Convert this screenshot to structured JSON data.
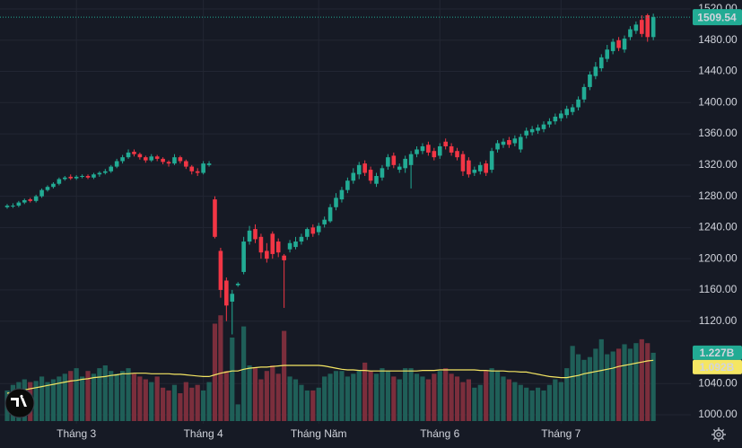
{
  "chart_data": {
    "type": "candlestick",
    "up_color": "#22ab94",
    "down_color": "#f23645",
    "volume_up_color": "#1f5f58",
    "volume_down_color": "#7b2e3c",
    "ma_color": "#f5e663",
    "grid": true,
    "ylim": [
      1000,
      1520
    ],
    "yticks": [
      {
        "value": 1000,
        "label": "1000.00"
      },
      {
        "value": 1040,
        "label": "1040.00"
      },
      {
        "value": 1120,
        "label": "1120.00"
      },
      {
        "value": 1160,
        "label": "1160.00"
      },
      {
        "value": 1200,
        "label": "1200.00"
      },
      {
        "value": 1240,
        "label": "1240.00"
      },
      {
        "value": 1280,
        "label": "1280.00"
      },
      {
        "value": 1320,
        "label": "1320.00"
      },
      {
        "value": 1360,
        "label": "1360.00"
      },
      {
        "value": 1400,
        "label": "1400.00"
      },
      {
        "value": 1440,
        "label": "1440.00"
      },
      {
        "value": 1480,
        "label": "1480.00"
      },
      {
        "value": 1520,
        "label": "1520.00"
      }
    ],
    "xticks": [
      {
        "value": 12,
        "label": "Tháng 3"
      },
      {
        "value": 34,
        "label": "Tháng 4"
      },
      {
        "value": 54,
        "label": "Tháng Năm"
      },
      {
        "value": 75,
        "label": "Tháng 6"
      },
      {
        "value": 96,
        "label": "Tháng 7"
      }
    ],
    "volume_ylim": [
      0,
      7.5
    ],
    "last_volume_label": "1.227B",
    "last_ma_label": "1.092B",
    "ohlc": [
      [
        1266,
        1270,
        1264,
        1268
      ],
      [
        1268,
        1271,
        1265,
        1268
      ],
      [
        1268,
        1274,
        1266,
        1272
      ],
      [
        1272,
        1277,
        1270,
        1275
      ],
      [
        1276,
        1278,
        1272,
        1274
      ],
      [
        1274,
        1282,
        1272,
        1280
      ],
      [
        1280,
        1290,
        1278,
        1288
      ],
      [
        1288,
        1294,
        1286,
        1292
      ],
      [
        1292,
        1298,
        1290,
        1296
      ],
      [
        1296,
        1304,
        1294,
        1302
      ],
      [
        1302,
        1306,
        1300,
        1304
      ],
      [
        1305,
        1308,
        1301,
        1303
      ],
      [
        1303,
        1307,
        1301,
        1305
      ],
      [
        1305,
        1308,
        1303,
        1306
      ],
      [
        1306,
        1308,
        1302,
        1304
      ],
      [
        1304,
        1310,
        1302,
        1308
      ],
      [
        1308,
        1312,
        1305,
        1310
      ],
      [
        1310,
        1315,
        1308,
        1312
      ],
      [
        1312,
        1320,
        1310,
        1318
      ],
      [
        1318,
        1328,
        1316,
        1325
      ],
      [
        1325,
        1333,
        1322,
        1330
      ],
      [
        1330,
        1340,
        1328,
        1336
      ],
      [
        1337,
        1340,
        1331,
        1334
      ],
      [
        1334,
        1336,
        1327,
        1330
      ],
      [
        1330,
        1332,
        1323,
        1326
      ],
      [
        1326,
        1334,
        1324,
        1331
      ],
      [
        1331,
        1333,
        1325,
        1328
      ],
      [
        1328,
        1330,
        1321,
        1324
      ],
      [
        1324,
        1326,
        1318,
        1322
      ],
      [
        1322,
        1334,
        1320,
        1330
      ],
      [
        1330,
        1332,
        1322,
        1325
      ],
      [
        1325,
        1327,
        1315,
        1318
      ],
      [
        1318,
        1320,
        1308,
        1312
      ],
      [
        1312,
        1316,
        1306,
        1310
      ],
      [
        1310,
        1325,
        1308,
        1322
      ],
      [
        1320,
        1325,
        1318,
        1322
      ],
      [
        1276,
        1280,
        1226,
        1228
      ],
      [
        1210,
        1214,
        1150,
        1160
      ],
      [
        1172,
        1176,
        1120,
        1140
      ],
      [
        1145,
        1160,
        1103,
        1155
      ],
      [
        1166,
        1170,
        1164,
        1168
      ],
      [
        1183,
        1228,
        1180,
        1222
      ],
      [
        1222,
        1242,
        1218,
        1236
      ],
      [
        1238,
        1244,
        1220,
        1225
      ],
      [
        1228,
        1232,
        1200,
        1208
      ],
      [
        1210,
        1220,
        1195,
        1200
      ],
      [
        1232,
        1235,
        1200,
        1206
      ],
      [
        1222,
        1226,
        1202,
        1208
      ],
      [
        1204,
        1206,
        1137,
        1198
      ],
      [
        1212,
        1224,
        1208,
        1220
      ],
      [
        1215,
        1228,
        1212,
        1222
      ],
      [
        1222,
        1232,
        1218,
        1228
      ],
      [
        1228,
        1240,
        1224,
        1238
      ],
      [
        1240,
        1244,
        1228,
        1232
      ],
      [
        1234,
        1246,
        1230,
        1242
      ],
      [
        1244,
        1254,
        1240,
        1250
      ],
      [
        1248,
        1270,
        1246,
        1266
      ],
      [
        1266,
        1284,
        1262,
        1278
      ],
      [
        1276,
        1292,
        1272,
        1288
      ],
      [
        1288,
        1304,
        1284,
        1300
      ],
      [
        1300,
        1316,
        1296,
        1310
      ],
      [
        1308,
        1324,
        1302,
        1320
      ],
      [
        1322,
        1326,
        1306,
        1310
      ],
      [
        1314,
        1318,
        1296,
        1300
      ],
      [
        1296,
        1310,
        1292,
        1306
      ],
      [
        1304,
        1320,
        1300,
        1316
      ],
      [
        1318,
        1334,
        1314,
        1330
      ],
      [
        1332,
        1336,
        1316,
        1320
      ],
      [
        1314,
        1322,
        1310,
        1318
      ],
      [
        1316,
        1332,
        1310,
        1328
      ],
      [
        1320,
        1338,
        1290,
        1334
      ],
      [
        1334,
        1344,
        1330,
        1340
      ],
      [
        1338,
        1348,
        1334,
        1344
      ],
      [
        1346,
        1350,
        1332,
        1336
      ],
      [
        1338,
        1342,
        1326,
        1330
      ],
      [
        1332,
        1348,
        1328,
        1344
      ],
      [
        1350,
        1354,
        1340,
        1344
      ],
      [
        1344,
        1348,
        1332,
        1336
      ],
      [
        1338,
        1342,
        1326,
        1330
      ],
      [
        1334,
        1338,
        1306,
        1312
      ],
      [
        1326,
        1330,
        1304,
        1308
      ],
      [
        1310,
        1318,
        1306,
        1314
      ],
      [
        1312,
        1324,
        1308,
        1320
      ],
      [
        1322,
        1326,
        1306,
        1310
      ],
      [
        1314,
        1342,
        1310,
        1338
      ],
      [
        1340,
        1352,
        1336,
        1348
      ],
      [
        1346,
        1354,
        1342,
        1350
      ],
      [
        1352,
        1356,
        1342,
        1346
      ],
      [
        1348,
        1358,
        1344,
        1354
      ],
      [
        1340,
        1360,
        1336,
        1356
      ],
      [
        1358,
        1368,
        1354,
        1364
      ],
      [
        1362,
        1370,
        1358,
        1366
      ],
      [
        1364,
        1372,
        1360,
        1368
      ],
      [
        1366,
        1376,
        1362,
        1372
      ],
      [
        1372,
        1380,
        1368,
        1376
      ],
      [
        1376,
        1386,
        1372,
        1382
      ],
      [
        1380,
        1390,
        1376,
        1386
      ],
      [
        1384,
        1396,
        1380,
        1392
      ],
      [
        1388,
        1398,
        1384,
        1394
      ],
      [
        1394,
        1408,
        1390,
        1404
      ],
      [
        1404,
        1424,
        1400,
        1420
      ],
      [
        1420,
        1440,
        1416,
        1436
      ],
      [
        1434,
        1452,
        1430,
        1446
      ],
      [
        1444,
        1462,
        1440,
        1458
      ],
      [
        1456,
        1474,
        1452,
        1468
      ],
      [
        1466,
        1482,
        1462,
        1478
      ],
      [
        1480,
        1484,
        1466,
        1470
      ],
      [
        1468,
        1486,
        1464,
        1482
      ],
      [
        1484,
        1498,
        1480,
        1494
      ],
      [
        1492,
        1504,
        1488,
        1500
      ],
      [
        1506,
        1512,
        1484,
        1488
      ],
      [
        1512,
        1514,
        1478,
        1484
      ],
      [
        1484,
        1514,
        1480,
        1509.54
      ]
    ],
    "volume": [
      0.55,
      0.65,
      0.7,
      0.75,
      0.7,
      0.72,
      0.8,
      0.7,
      0.75,
      0.8,
      0.85,
      0.9,
      0.95,
      0.8,
      0.9,
      0.85,
      0.95,
      1.0,
      0.9,
      0.85,
      0.9,
      0.95,
      0.85,
      0.8,
      0.75,
      0.7,
      0.8,
      0.6,
      0.55,
      0.65,
      0.5,
      0.7,
      0.6,
      0.65,
      0.55,
      0.7,
      1.75,
      1.9,
      0.9,
      1.5,
      0.3,
      1.7,
      1.0,
      0.95,
      0.75,
      0.9,
      1.0,
      0.85,
      1.62,
      0.8,
      0.75,
      0.65,
      0.55,
      0.55,
      0.6,
      0.8,
      0.85,
      0.9,
      0.9,
      0.8,
      0.85,
      0.9,
      1.05,
      0.9,
      0.85,
      0.95,
      0.9,
      0.8,
      0.75,
      0.95,
      0.95,
      0.85,
      0.8,
      0.75,
      0.85,
      0.9,
      0.95,
      0.85,
      0.8,
      0.7,
      0.75,
      0.6,
      0.65,
      0.9,
      0.95,
      0.9,
      0.8,
      0.75,
      0.7,
      0.65,
      0.6,
      0.55,
      0.6,
      0.55,
      0.65,
      0.75,
      0.7,
      0.95,
      1.35,
      1.2,
      1.1,
      1.15,
      1.3,
      1.47,
      1.2,
      1.25,
      1.3,
      1.38,
      1.3,
      1.4,
      1.47,
      1.4,
      1.227
    ],
    "volume_ma": [
      0.5,
      0.52,
      0.54,
      0.56,
      0.58,
      0.6,
      0.62,
      0.64,
      0.66,
      0.68,
      0.7,
      0.72,
      0.73,
      0.75,
      0.76,
      0.78,
      0.79,
      0.8,
      0.82,
      0.83,
      0.85,
      0.85,
      0.86,
      0.86,
      0.86,
      0.85,
      0.85,
      0.85,
      0.85,
      0.84,
      0.84,
      0.83,
      0.82,
      0.81,
      0.8,
      0.8,
      0.83,
      0.86,
      0.88,
      0.9,
      0.9,
      0.93,
      0.95,
      0.96,
      0.97,
      0.97,
      0.98,
      0.99,
      1.0,
      1.0,
      1.0,
      1.0,
      1.0,
      1.0,
      1.0,
      0.99,
      0.97,
      0.95,
      0.93,
      0.92,
      0.92,
      0.91,
      0.91,
      0.9,
      0.9,
      0.9,
      0.9,
      0.9,
      0.9,
      0.9,
      0.9,
      0.9,
      0.91,
      0.91,
      0.91,
      0.92,
      0.92,
      0.92,
      0.92,
      0.92,
      0.92,
      0.92,
      0.91,
      0.91,
      0.9,
      0.9,
      0.9,
      0.89,
      0.89,
      0.88,
      0.88,
      0.86,
      0.84,
      0.82,
      0.8,
      0.79,
      0.78,
      0.78,
      0.8,
      0.82,
      0.85,
      0.87,
      0.89,
      0.91,
      0.93,
      0.95,
      0.98,
      1.0,
      1.02,
      1.04,
      1.06,
      1.08,
      1.092
    ]
  }
}
